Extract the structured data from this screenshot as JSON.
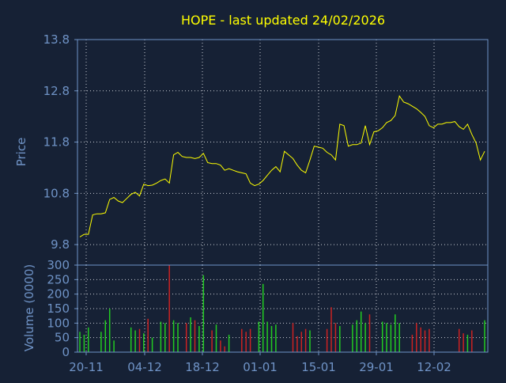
{
  "chart_data": [
    {
      "type": "line",
      "title": "HOPE - last updated 24/02/2026",
      "ylabel": "Price",
      "ylim": [
        9.4,
        13.8
      ],
      "yticks": [
        9.8,
        10.8,
        11.8,
        12.8,
        13.8
      ],
      "grid": true,
      "line_color": "#ffff00",
      "series": [
        {
          "values": [
            9.95,
            10.0,
            10.0,
            10.38,
            10.4,
            10.4,
            10.42,
            10.68,
            10.72,
            10.65,
            10.62,
            10.7,
            10.78,
            10.82,
            10.75,
            10.98,
            10.95,
            10.96,
            11.0,
            11.05,
            11.08,
            11.0,
            11.55,
            11.6,
            11.52,
            11.5,
            11.5,
            11.48,
            11.5,
            11.58,
            11.4,
            11.38,
            11.38,
            11.35,
            11.25,
            11.28,
            11.25,
            11.22,
            11.2,
            11.18,
            11.0,
            10.95,
            10.98,
            11.05,
            11.15,
            11.25,
            11.32,
            11.22,
            11.62,
            11.55,
            11.48,
            11.35,
            11.25,
            11.2,
            11.45,
            11.72,
            11.7,
            11.68,
            11.6,
            11.55,
            11.45,
            12.15,
            12.12,
            11.72,
            11.75,
            11.75,
            11.78,
            12.12,
            11.75,
            12.0,
            12.02,
            12.08,
            12.18,
            12.22,
            12.32,
            12.7,
            12.58,
            12.55,
            12.5,
            12.45,
            12.38,
            12.3,
            12.12,
            12.08,
            12.15,
            12.15,
            12.18,
            12.18,
            12.2,
            12.1,
            12.05,
            12.15,
            11.95,
            11.78,
            11.45,
            11.62
          ]
        }
      ]
    },
    {
      "type": "bar",
      "ylabel": "Volume (0000)",
      "ylim": [
        0,
        300
      ],
      "yticks": [
        0,
        50,
        100,
        150,
        200,
        250,
        300
      ],
      "grid": true,
      "up_color": "#22cc22",
      "down_color": "#cc2222",
      "xtick_labels": [
        "20-11",
        "04-12",
        "18-12",
        "01-01",
        "15-01",
        "29-01",
        "12-02"
      ],
      "values": [
        70,
        60,
        85,
        0,
        0,
        70,
        110,
        150,
        40,
        0,
        0,
        0,
        85,
        75,
        80,
        65,
        115,
        50,
        0,
        105,
        100,
        300,
        110,
        100,
        0,
        100,
        120,
        110,
        90,
        265,
        0,
        75,
        95,
        40,
        20,
        60,
        0,
        0,
        80,
        70,
        80,
        0,
        105,
        235,
        105,
        90,
        95,
        0,
        0,
        0,
        100,
        55,
        70,
        80,
        75,
        0,
        0,
        0,
        80,
        155,
        100,
        90,
        0,
        0,
        95,
        110,
        140,
        100,
        130,
        0,
        0,
        105,
        100,
        95,
        130,
        100,
        0,
        0,
        60,
        100,
        85,
        75,
        80,
        0,
        0,
        0,
        0,
        0,
        0,
        80,
        65,
        60,
        75,
        0,
        0,
        110
      ]
    }
  ]
}
